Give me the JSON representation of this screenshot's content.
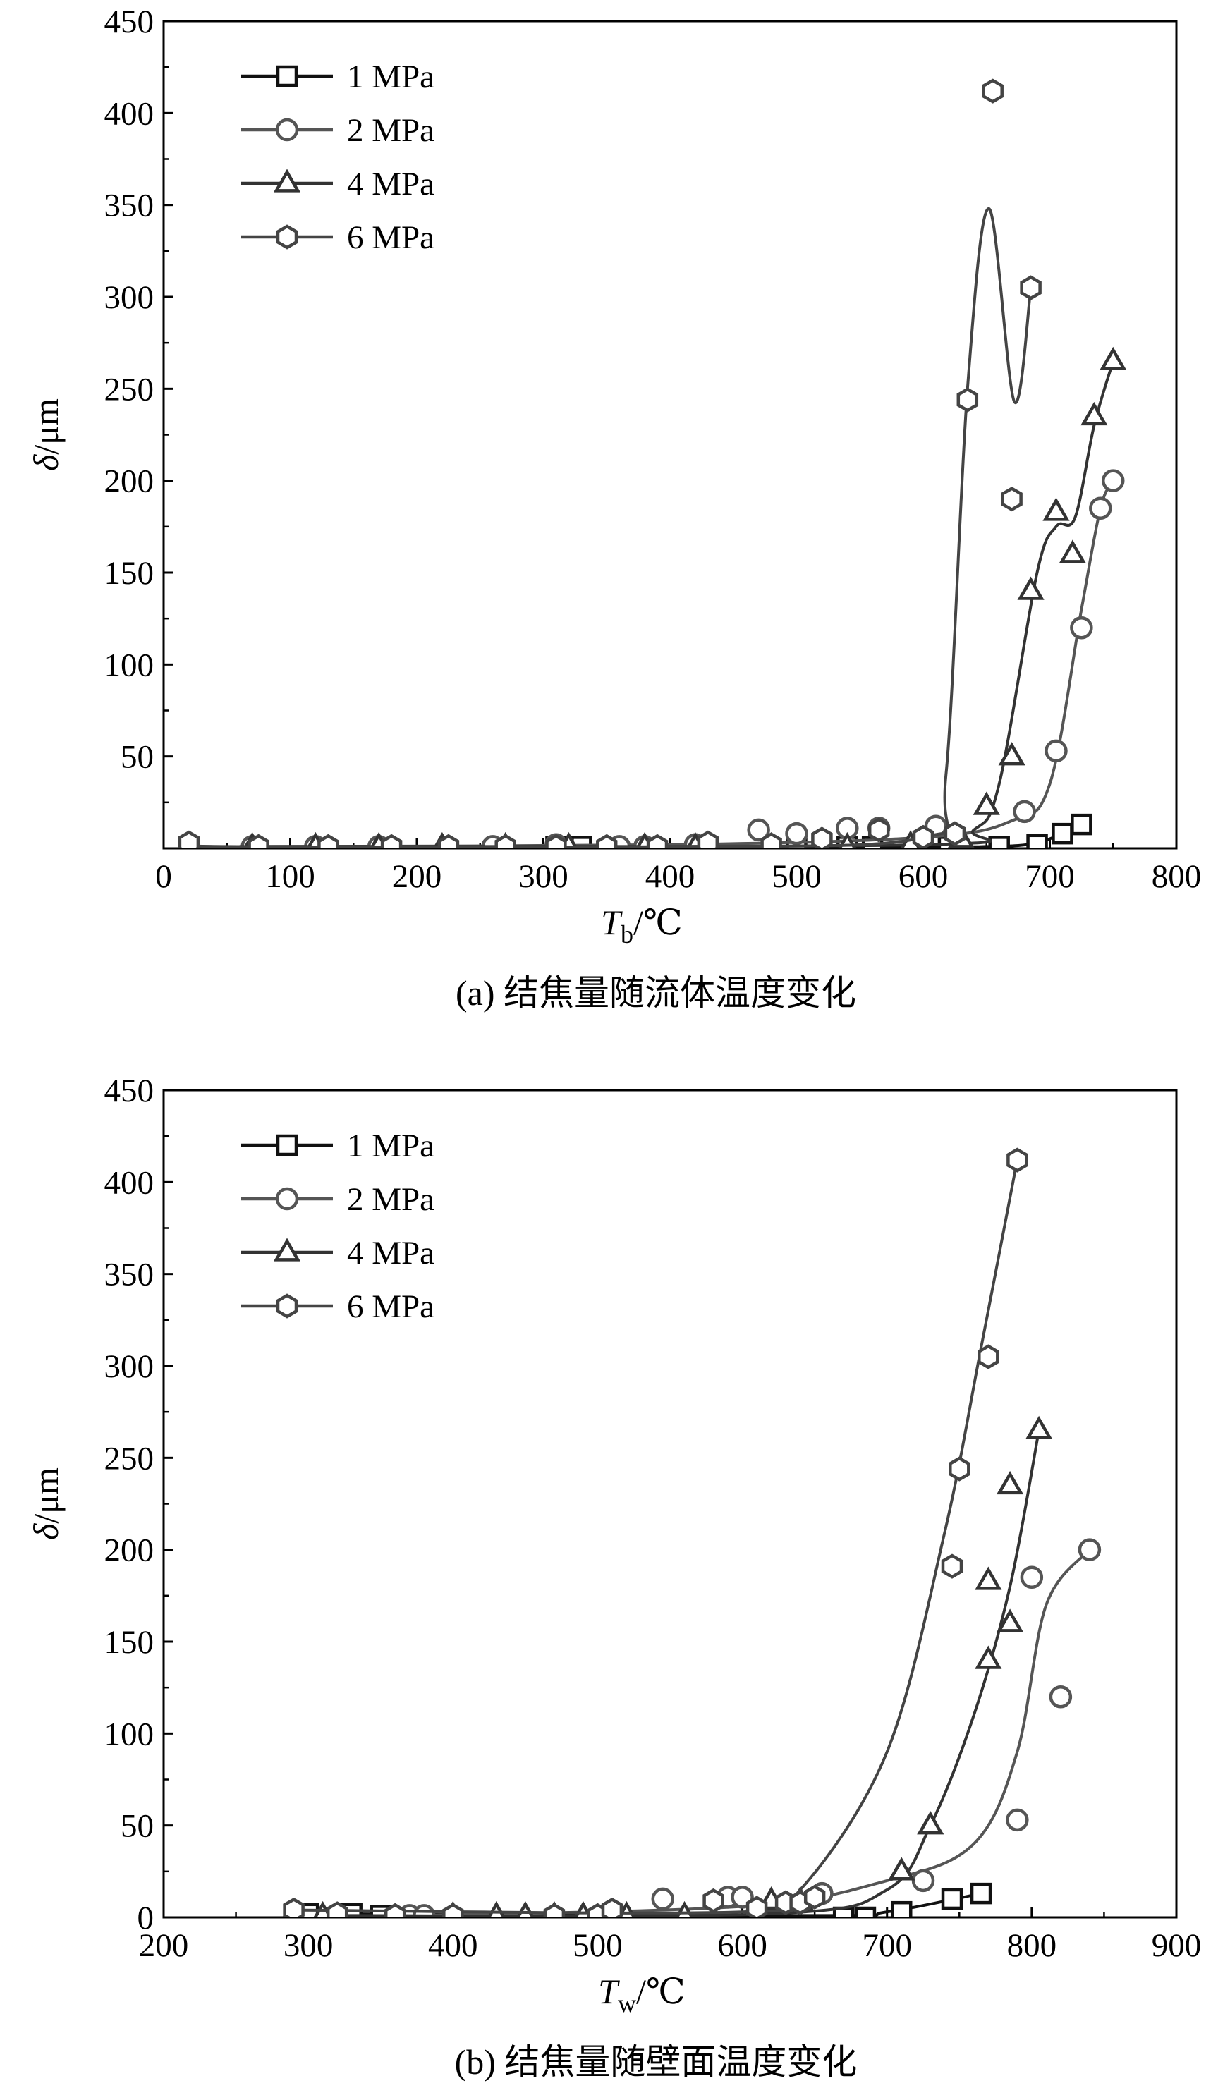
{
  "charts": [
    {
      "caption": "(a) 结焦量随流体温度变化",
      "xlabel_main": "T",
      "xlabel_sub": "b",
      "xlabel_unit": "/℃",
      "ylabel": "δ/μm",
      "xticks": [
        "0",
        "100",
        "200",
        "300",
        "400",
        "500",
        "600",
        "700",
        "800"
      ],
      "yticks": [
        "50",
        "100",
        "150",
        "200",
        "250",
        "300",
        "350",
        "400",
        "450"
      ],
      "xorigin_label": "0",
      "legend": [
        "1 MPa",
        "2 MPa",
        "4 MPa",
        "6 MPa"
      ]
    },
    {
      "caption": "(b) 结焦量随壁面温度变化",
      "xlabel_main": "T",
      "xlabel_sub": "w",
      "xlabel_unit": "/℃",
      "ylabel": "δ/μm",
      "xticks": [
        "200",
        "300",
        "400",
        "500",
        "600",
        "700",
        "800",
        "900"
      ],
      "yticks": [
        "50",
        "100",
        "150",
        "200",
        "250",
        "300",
        "350",
        "400",
        "450"
      ],
      "xorigin_label": "0",
      "legend": [
        "1 MPa",
        "2 MPa",
        "4 MPa",
        "6 MPa"
      ]
    }
  ],
  "chart_data": [
    {
      "type": "scatter",
      "title": "(a) 结焦量随流体温度变化",
      "xlabel": "Tb/℃",
      "ylabel": "δ/μm",
      "xlim": [
        0,
        800
      ],
      "ylim": [
        0,
        450
      ],
      "grid": false,
      "legend_position": "top-left",
      "series": [
        {
          "name": "1 MPa",
          "marker": "square",
          "color": "#111111",
          "points": [
            [
              310,
              1
            ],
            [
              330,
              1
            ],
            [
              500,
              0
            ],
            [
              540,
              1
            ],
            [
              560,
              1
            ],
            [
              620,
              1
            ],
            [
              660,
              1
            ],
            [
              690,
              2
            ],
            [
              710,
              8
            ],
            [
              725,
              13
            ]
          ],
          "curve": [
            [
              305,
              1
            ],
            [
              600,
              1
            ],
            [
              650,
              1
            ],
            [
              690,
              3
            ],
            [
              725,
              13
            ]
          ]
        },
        {
          "name": "2 MPa",
          "marker": "circle",
          "color": "#555555",
          "points": [
            [
              70,
              1
            ],
            [
              120,
              1
            ],
            [
              170,
              1
            ],
            [
              260,
              1
            ],
            [
              310,
              2
            ],
            [
              360,
              1
            ],
            [
              380,
              1
            ],
            [
              420,
              2
            ],
            [
              470,
              10
            ],
            [
              500,
              8
            ],
            [
              540,
              11
            ],
            [
              565,
              11
            ],
            [
              610,
              12
            ],
            [
              680,
              20
            ],
            [
              705,
              53
            ],
            [
              725,
              120
            ],
            [
              740,
              185
            ],
            [
              750,
              200
            ]
          ],
          "curve": [
            [
              60,
              1
            ],
            [
              400,
              2
            ],
            [
              600,
              6
            ],
            [
              670,
              15
            ],
            [
              700,
              35
            ],
            [
              725,
              130
            ],
            [
              740,
              185
            ],
            [
              750,
              200
            ]
          ]
        },
        {
          "name": "4 MPa",
          "marker": "triangle",
          "color": "#333333",
          "points": [
            [
              70,
              1
            ],
            [
              120,
              1
            ],
            [
              170,
              1
            ],
            [
              220,
              1
            ],
            [
              270,
              1
            ],
            [
              320,
              1
            ],
            [
              380,
              1
            ],
            [
              420,
              1
            ],
            [
              480,
              1
            ],
            [
              540,
              1
            ],
            [
              590,
              2
            ],
            [
              630,
              5
            ],
            [
              650,
              23
            ],
            [
              670,
              50
            ],
            [
              685,
              140
            ],
            [
              705,
              183
            ],
            [
              718,
              160
            ],
            [
              735,
              235
            ],
            [
              750,
              265
            ]
          ],
          "curve": [
            [
              60,
              1
            ],
            [
              600,
              2
            ],
            [
              640,
              10
            ],
            [
              660,
              35
            ],
            [
              690,
              150
            ],
            [
              705,
              175
            ],
            [
              720,
              180
            ],
            [
              735,
              230
            ],
            [
              750,
              265
            ]
          ]
        },
        {
          "name": "6 MPa",
          "marker": "hexagon",
          "color": "#444444",
          "points": [
            [
              20,
              3
            ],
            [
              75,
              1
            ],
            [
              130,
              1
            ],
            [
              180,
              1
            ],
            [
              225,
              1
            ],
            [
              270,
              1
            ],
            [
              310,
              1
            ],
            [
              350,
              1
            ],
            [
              390,
              1
            ],
            [
              430,
              3
            ],
            [
              480,
              2
            ],
            [
              520,
              5
            ],
            [
              565,
              10
            ],
            [
              600,
              6
            ],
            [
              625,
              8
            ],
            [
              635,
              244
            ],
            [
              655,
              412
            ],
            [
              670,
              190
            ],
            [
              685,
              305
            ]
          ],
          "curve": [
            [
              20,
              3
            ],
            [
              50,
              1
            ],
            [
              400,
              1
            ],
            [
              600,
              6
            ],
            [
              618,
              40
            ],
            [
              635,
              250
            ],
            [
              652,
              348
            ],
            [
              672,
              243
            ],
            [
              685,
              305
            ]
          ]
        }
      ]
    },
    {
      "type": "scatter",
      "title": "(b) 结焦量随壁面温度变化",
      "xlabel": "Tw/℃",
      "ylabel": "δ/μm",
      "xlim": [
        200,
        900
      ],
      "ylim": [
        0,
        450
      ],
      "grid": false,
      "legend_position": "top-left",
      "series": [
        {
          "name": "1 MPa",
          "marker": "square",
          "color": "#111111",
          "points": [
            [
              300,
              2
            ],
            [
              330,
              2
            ],
            [
              350,
              1
            ],
            [
              670,
              0
            ],
            [
              685,
              0
            ],
            [
              710,
              3
            ],
            [
              745,
              10
            ],
            [
              765,
              13
            ]
          ],
          "curve": [
            [
              300,
              2
            ],
            [
              650,
              1
            ],
            [
              700,
              3
            ],
            [
              765,
              13
            ]
          ]
        },
        {
          "name": "2 MPa",
          "marker": "circle",
          "color": "#555555",
          "points": [
            [
              370,
              1
            ],
            [
              380,
              1
            ],
            [
              545,
              10
            ],
            [
              590,
              11
            ],
            [
              600,
              11
            ],
            [
              655,
              13
            ],
            [
              725,
              20
            ],
            [
              790,
              53
            ],
            [
              800,
              185
            ],
            [
              820,
              120
            ],
            [
              840,
              200
            ]
          ],
          "curve": [
            [
              370,
              1
            ],
            [
              600,
              6
            ],
            [
              700,
              20
            ],
            [
              760,
              40
            ],
            [
              790,
              90
            ],
            [
              810,
              170
            ],
            [
              840,
              200
            ]
          ]
        },
        {
          "name": "4 MPa",
          "marker": "triangle",
          "color": "#333333",
          "points": [
            [
              310,
              1
            ],
            [
              400,
              1
            ],
            [
              430,
              1
            ],
            [
              450,
              1
            ],
            [
              470,
              1
            ],
            [
              490,
              1
            ],
            [
              520,
              1
            ],
            [
              560,
              1
            ],
            [
              620,
              9
            ],
            [
              640,
              9
            ],
            [
              710,
              25
            ],
            [
              730,
              50
            ],
            [
              770,
              140
            ],
            [
              785,
              160
            ],
            [
              770,
              183
            ],
            [
              785,
              235
            ],
            [
              805,
              265
            ]
          ],
          "curve": [
            [
              310,
              1
            ],
            [
              620,
              2
            ],
            [
              700,
              15
            ],
            [
              730,
              50
            ],
            [
              760,
              110
            ],
            [
              785,
              180
            ],
            [
              805,
              265
            ]
          ]
        },
        {
          "name": "6 MPa",
          "marker": "hexagon",
          "color": "#444444",
          "points": [
            [
              290,
              4
            ],
            [
              320,
              2
            ],
            [
              360,
              1
            ],
            [
              400,
              1
            ],
            [
              470,
              1
            ],
            [
              500,
              1
            ],
            [
              510,
              4
            ],
            [
              580,
              9
            ],
            [
              610,
              5
            ],
            [
              630,
              8
            ],
            [
              640,
              8
            ],
            [
              650,
              11
            ],
            [
              745,
              191
            ],
            [
              750,
              244
            ],
            [
              770,
              305
            ],
            [
              790,
              412
            ]
          ],
          "curve": [
            [
              290,
              4
            ],
            [
              600,
              3
            ],
            [
              640,
              15
            ],
            [
              700,
              90
            ],
            [
              740,
              210
            ],
            [
              765,
              310
            ],
            [
              790,
              412
            ]
          ]
        }
      ]
    }
  ]
}
